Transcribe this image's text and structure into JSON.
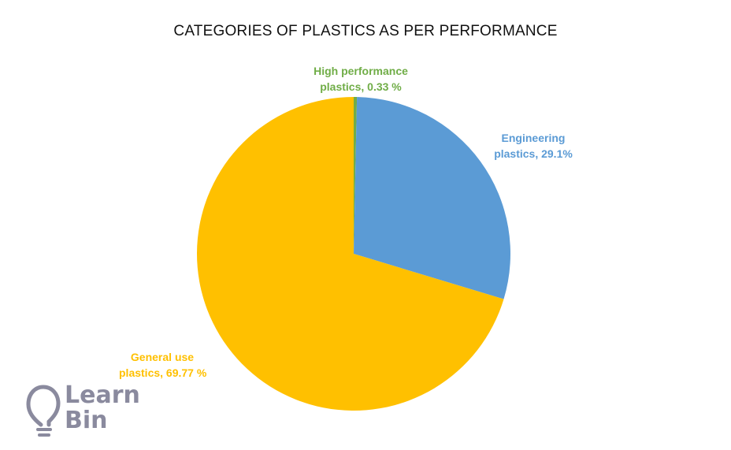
{
  "chart_data": {
    "type": "pie",
    "title": "CATEGORIES OF PLASTICS AS PER PERFORMANCE",
    "categories": [
      "High performance plastics",
      "Engineering plastics",
      "General use plastics"
    ],
    "values": [
      0.33,
      29.1,
      69.77
    ],
    "labels": [
      {
        "line1": "High performance",
        "line2": "plastics, 0.33 %"
      },
      {
        "line1": "Engineering",
        "line2": "plastics, 29.1%"
      },
      {
        "line1": "General use",
        "line2": "plastics, 69.77 %"
      }
    ],
    "colors": [
      "#70ad47",
      "#5b9bd5",
      "#ffc000"
    ]
  },
  "logo": {
    "line1": "Learn",
    "line2": "Bin",
    "icon": "lightbulb-icon"
  }
}
